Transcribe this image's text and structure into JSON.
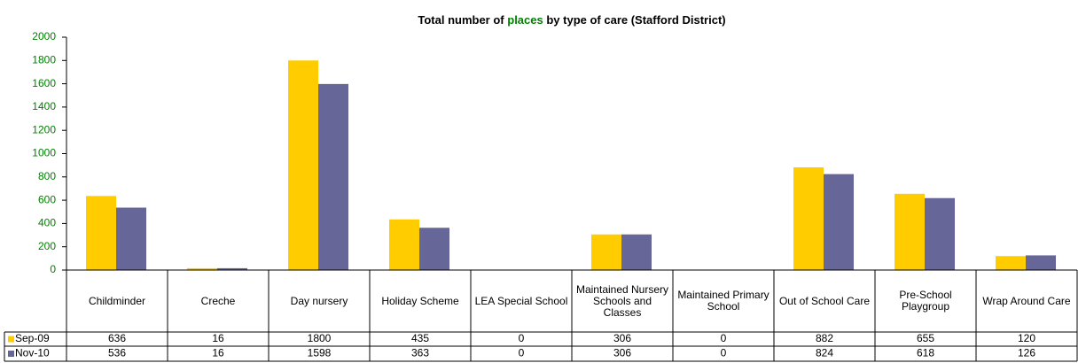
{
  "chart_data": {
    "type": "bar",
    "title": [
      "Total number of ",
      "places",
      " by type of care (Stafford  District)"
    ],
    "title_colors": [
      "#000000",
      "#008000",
      "#000000"
    ],
    "categories": [
      "Childminder",
      "Creche",
      "Day nursery",
      "Holiday Scheme",
      "LEA Special School",
      "Maintained Nursery Schools and Classes",
      "Maintained Primary School",
      "Out of School Care",
      "Pre-School Playgroup",
      "Wrap Around Care"
    ],
    "series": [
      {
        "name": "Sep-09",
        "color": "#FFCC00",
        "values": [
          636,
          16,
          1800,
          435,
          0,
          306,
          0,
          882,
          655,
          120
        ]
      },
      {
        "name": "Nov-10",
        "color": "#666699",
        "values": [
          536,
          16,
          1598,
          363,
          0,
          306,
          0,
          824,
          618,
          126
        ]
      }
    ],
    "ylim": [
      0,
      2000
    ],
    "yticks": [
      0,
      200,
      400,
      600,
      800,
      1000,
      1200,
      1400,
      1600,
      1800,
      2000
    ],
    "tick_color": "#008000",
    "grid": false
  }
}
